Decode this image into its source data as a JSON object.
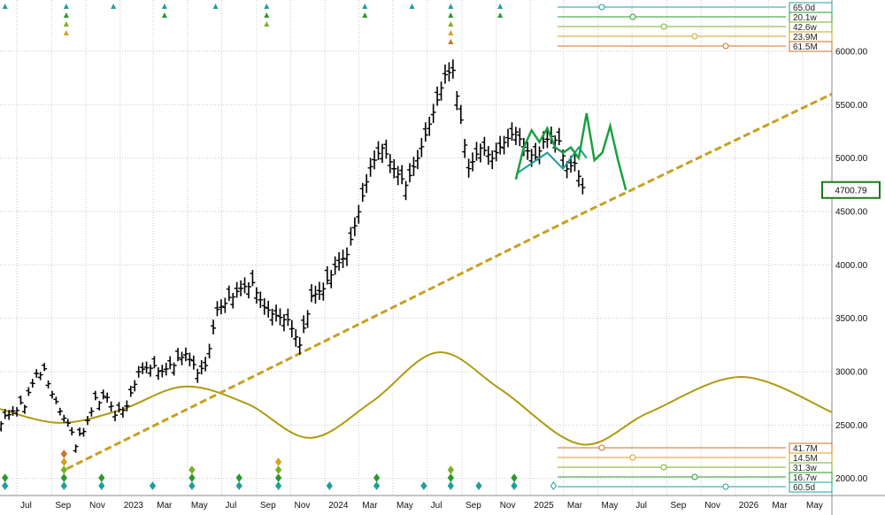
{
  "chart_data": {
    "type": "line",
    "subtype": "ohlc-bars-with-cycle-forecast",
    "y_axis": {
      "ticks": [
        6000,
        5500,
        5000,
        4500,
        4000,
        3500,
        3000,
        2500,
        2000
      ],
      "tick_labels": [
        "6000.00",
        "5500.00",
        "5000.00",
        "4500.00",
        "4000.00",
        "3500.00",
        "3000.00",
        "2500.00",
        "2000.00"
      ],
      "range": [
        1840,
        6480
      ],
      "position": "right",
      "grid": true
    },
    "x_axis": {
      "tick_labels": [
        "Jul",
        "Sep",
        "Nov",
        "2023",
        "Mar",
        "May",
        "Jul",
        "Sep",
        "Nov",
        "2024",
        "Mar",
        "May",
        "Jul",
        "Sep",
        "Nov",
        "2025",
        "Mar",
        "May",
        "Jul",
        "Sep",
        "Nov",
        "2026",
        "Mar",
        "May"
      ],
      "tick_dates": [
        "2022-07-01",
        "2022-09-01",
        "2022-11-01",
        "2023-01-01",
        "2023-03-01",
        "2023-05-01",
        "2023-07-01",
        "2023-09-01",
        "2023-11-01",
        "2024-01-01",
        "2024-03-01",
        "2024-05-01",
        "2024-07-01",
        "2024-09-01",
        "2024-11-01",
        "2025-01-01",
        "2025-03-01",
        "2025-05-01",
        "2025-07-01",
        "2025-09-01",
        "2025-11-01",
        "2026-01-01",
        "2026-03-01",
        "2026-05-01"
      ],
      "range": [
        "2022-06-01",
        "2026-06-22"
      ],
      "grid": true
    },
    "current_price": {
      "label": "4700.79",
      "value": 4700.79,
      "color": "#1a7a1a"
    },
    "price_series": {
      "name": "",
      "color": "#000000",
      "points": [
        [
          "2022-06-03",
          2540
        ],
        [
          "2022-06-24",
          2630
        ],
        [
          "2022-07-15",
          2700
        ],
        [
          "2022-08-05",
          2980
        ],
        [
          "2022-08-19",
          3000
        ],
        [
          "2022-09-09",
          2700
        ],
        [
          "2022-09-30",
          2510
        ],
        [
          "2022-10-14",
          2330
        ],
        [
          "2022-10-28",
          2450
        ],
        [
          "2022-11-18",
          2730
        ],
        [
          "2022-12-09",
          2760
        ],
        [
          "2022-12-23",
          2600
        ],
        [
          "2023-01-13",
          2680
        ],
        [
          "2023-02-03",
          3000
        ],
        [
          "2023-02-24",
          3050
        ],
        [
          "2023-03-17",
          3000
        ],
        [
          "2023-04-07",
          3080
        ],
        [
          "2023-04-28",
          3170
        ],
        [
          "2023-05-19",
          3000
        ],
        [
          "2023-06-02",
          3050
        ],
        [
          "2023-06-23",
          3580
        ],
        [
          "2023-07-14",
          3680
        ],
        [
          "2023-08-04",
          3780
        ],
        [
          "2023-08-25",
          3820
        ],
        [
          "2023-09-15",
          3600
        ],
        [
          "2023-10-06",
          3520
        ],
        [
          "2023-10-27",
          3480
        ],
        [
          "2023-11-17",
          3250
        ],
        [
          "2023-12-08",
          3700
        ],
        [
          "2023-12-29",
          3780
        ],
        [
          "2024-01-19",
          3980
        ],
        [
          "2024-02-09",
          4100
        ],
        [
          "2024-03-01",
          4500
        ],
        [
          "2024-03-22",
          4920
        ],
        [
          "2024-04-12",
          5100
        ],
        [
          "2024-05-03",
          4900
        ],
        [
          "2024-05-24",
          4750
        ],
        [
          "2024-06-14",
          5000
        ],
        [
          "2024-07-05",
          5320
        ],
        [
          "2024-07-19",
          5540
        ],
        [
          "2024-08-02",
          5780
        ],
        [
          "2024-08-16",
          5820
        ],
        [
          "2024-08-30",
          5350
        ],
        [
          "2024-09-13",
          4900
        ],
        [
          "2024-10-04",
          5100
        ],
        [
          "2024-10-25",
          5000
        ],
        [
          "2024-11-15",
          5150
        ],
        [
          "2024-12-06",
          5250
        ],
        [
          "2024-12-20",
          5100
        ],
        [
          "2025-01-10",
          5000
        ],
        [
          "2025-01-24",
          5150
        ],
        [
          "2025-02-07",
          5200
        ],
        [
          "2025-02-21",
          5150
        ],
        [
          "2025-03-07",
          4900
        ],
        [
          "2025-03-21",
          4950
        ],
        [
          "2025-04-04",
          4720
        ],
        [
          "2025-04-11",
          4600
        ]
      ]
    },
    "forecast_series": {
      "name": "",
      "color": "#1aa040",
      "points": [
        [
          "2024-12-06",
          4800
        ],
        [
          "2024-12-20",
          5100
        ],
        [
          "2025-01-03",
          5260
        ],
        [
          "2025-01-17",
          5150
        ],
        [
          "2025-01-31",
          5280
        ],
        [
          "2025-02-14",
          5100
        ],
        [
          "2025-02-28",
          5050
        ],
        [
          "2025-03-14",
          5100
        ],
        [
          "2025-03-28",
          5000
        ],
        [
          "2025-04-11",
          5420
        ],
        [
          "2025-04-25",
          4980
        ],
        [
          "2025-05-09",
          5050
        ],
        [
          "2025-05-23",
          5300
        ],
        [
          "2025-06-06",
          4980
        ],
        [
          "2025-06-20",
          4700
        ]
      ]
    },
    "forecast_series_2": {
      "name": "",
      "color": "#1a9a9a",
      "points": [
        [
          "2024-12-06",
          4850
        ],
        [
          "2025-01-03",
          4950
        ],
        [
          "2025-01-31",
          5050
        ],
        [
          "2025-02-28",
          4900
        ],
        [
          "2025-03-28",
          5100
        ],
        [
          "2025-04-11",
          5000
        ]
      ]
    },
    "trendline": {
      "name": "",
      "color": "#c8a020",
      "style": "dashed",
      "points": [
        [
          "2022-09-28",
          2090
        ],
        [
          "2025-04-11",
          4500
        ],
        [
          "2026-06-22",
          5600
        ]
      ]
    },
    "cycle_curve": {
      "name": "",
      "color": "#b09a10",
      "points": [
        [
          "2022-06-01",
          2650
        ],
        [
          "2022-09-15",
          2520
        ],
        [
          "2023-01-01",
          2640
        ],
        [
          "2023-04-25",
          2860
        ],
        [
          "2023-08-15",
          2700
        ],
        [
          "2023-12-05",
          2380
        ],
        [
          "2024-03-25",
          2720
        ],
        [
          "2024-07-20",
          3180
        ],
        [
          "2024-11-10",
          2830
        ],
        [
          "2025-04-01",
          2320
        ],
        [
          "2025-08-01",
          2620
        ],
        [
          "2026-01-12",
          2950
        ],
        [
          "2026-06-22",
          2620
        ]
      ]
    },
    "top_cycle_legend": {
      "labels": [
        "65.0d",
        "20.1w",
        "42.6w",
        "23.9M",
        "61.5M"
      ],
      "colors": [
        "#1aa0a0",
        "#2a9a2a",
        "#7ab020",
        "#d8a020",
        "#d07020"
      ]
    },
    "bottom_cycle_legend": {
      "labels": [
        "41.7M",
        "14.5M",
        "31.3w",
        "16.7w",
        "60.5d"
      ],
      "colors": [
        "#d07020",
        "#d8a020",
        "#7ab020",
        "#2a9a2a",
        "#1aa0a0"
      ]
    },
    "top_markers": [
      {
        "date": "2022-06-10",
        "color": "#1aa0a0"
      },
      {
        "date": "2022-09-27",
        "color": "#1aa0a0"
      },
      {
        "date": "2022-09-27",
        "color": "#2a9a2a"
      },
      {
        "date": "2022-09-27",
        "color": "#7ab020"
      },
      {
        "date": "2022-09-27",
        "color": "#d8a020"
      },
      {
        "date": "2022-12-20",
        "color": "#1aa0a0"
      },
      {
        "date": "2023-03-21",
        "color": "#1aa0a0"
      },
      {
        "date": "2023-03-21",
        "color": "#2a9a2a"
      },
      {
        "date": "2023-06-20",
        "color": "#1aa0a0"
      },
      {
        "date": "2023-09-19",
        "color": "#1aa0a0"
      },
      {
        "date": "2023-09-19",
        "color": "#2a9a2a"
      },
      {
        "date": "2023-09-19",
        "color": "#7ab020"
      },
      {
        "date": "2024-03-12",
        "color": "#1aa0a0"
      },
      {
        "date": "2024-03-12",
        "color": "#2a9a2a"
      },
      {
        "date": "2024-06-04",
        "color": "#1aa0a0"
      },
      {
        "date": "2024-08-12",
        "color": "#1aa0a0"
      },
      {
        "date": "2024-08-12",
        "color": "#2a9a2a"
      },
      {
        "date": "2024-08-12",
        "color": "#7ab020"
      },
      {
        "date": "2024-08-12",
        "color": "#d8a020"
      },
      {
        "date": "2024-08-12",
        "color": "#d07020"
      },
      {
        "date": "2024-11-08",
        "color": "#1aa0a0"
      },
      {
        "date": "2024-11-08",
        "color": "#2a9a2a"
      }
    ],
    "bottom_markers": [
      {
        "date": "2022-06-10",
        "color": "#1aa0a0"
      },
      {
        "date": "2022-06-10",
        "color": "#2a9a2a"
      },
      {
        "date": "2022-09-23",
        "color": "#1aa0a0"
      },
      {
        "date": "2022-09-23",
        "color": "#2a9a2a"
      },
      {
        "date": "2022-09-23",
        "color": "#7ab020"
      },
      {
        "date": "2022-09-23",
        "color": "#d8a020"
      },
      {
        "date": "2022-09-23",
        "color": "#d07020"
      },
      {
        "date": "2022-11-29",
        "color": "#1aa0a0"
      },
      {
        "date": "2022-11-29",
        "color": "#2a9a2a"
      },
      {
        "date": "2023-02-28",
        "color": "#1aa0a0"
      },
      {
        "date": "2023-05-09",
        "color": "#1aa0a0"
      },
      {
        "date": "2023-05-09",
        "color": "#2a9a2a"
      },
      {
        "date": "2023-05-09",
        "color": "#7ab020"
      },
      {
        "date": "2023-08-01",
        "color": "#1aa0a0"
      },
      {
        "date": "2023-08-01",
        "color": "#2a9a2a"
      },
      {
        "date": "2023-10-10",
        "color": "#1aa0a0"
      },
      {
        "date": "2023-10-10",
        "color": "#2a9a2a"
      },
      {
        "date": "2023-10-10",
        "color": "#7ab020"
      },
      {
        "date": "2023-10-10",
        "color": "#d8a020"
      },
      {
        "date": "2024-01-09",
        "color": "#1aa0a0"
      },
      {
        "date": "2024-04-02",
        "color": "#1aa0a0"
      },
      {
        "date": "2024-04-02",
        "color": "#2a9a2a"
      },
      {
        "date": "2024-06-25",
        "color": "#1aa0a0"
      },
      {
        "date": "2024-08-12",
        "color": "#1aa0a0"
      },
      {
        "date": "2024-08-12",
        "color": "#2a9a2a"
      },
      {
        "date": "2024-08-12",
        "color": "#7ab020"
      },
      {
        "date": "2024-10-01",
        "color": "#1aa0a0"
      },
      {
        "date": "2024-12-03",
        "color": "#1aa0a0"
      },
      {
        "date": "2024-12-03",
        "color": "#2a9a2a"
      },
      {
        "date": "2025-02-11",
        "color": "#1aa0a0",
        "hollow": true
      }
    ]
  }
}
